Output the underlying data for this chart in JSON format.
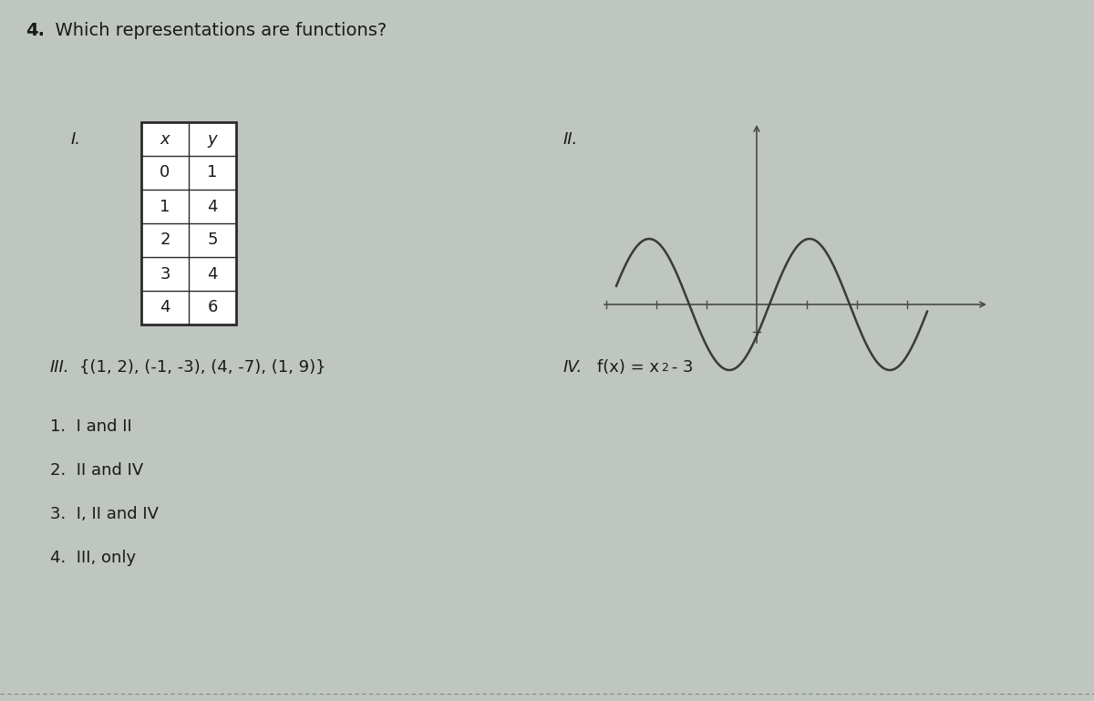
{
  "title_number": "4.",
  "title_text": "  Which representations are functions?",
  "title_fontsize": 14,
  "background_color": "#bfc5bf",
  "rep_I_label": "I.",
  "rep_II_label": "II.",
  "rep_III_label": "III.",
  "rep_IV_label": "IV.",
  "table_headers": [
    "x",
    "y"
  ],
  "table_data": [
    [
      "0",
      "1"
    ],
    [
      "1",
      "4"
    ],
    [
      "2",
      "5"
    ],
    [
      "3",
      "4"
    ],
    [
      "4",
      "6"
    ]
  ],
  "rep_III_text": "{(1, 2), (-1, -3), (4, -7), (1, 9)}",
  "options": [
    "1.  I and II",
    "2.  II and IV",
    "3.  I, II and IV",
    "4.  III, only"
  ],
  "option_fontsize": 13,
  "label_fontsize": 13,
  "table_fontsize": 13,
  "curve_color": "#3a3a3a",
  "axis_color": "#4a4a4a",
  "table_border_color": "#2a2a2a",
  "text_color": "#1a1a1a"
}
